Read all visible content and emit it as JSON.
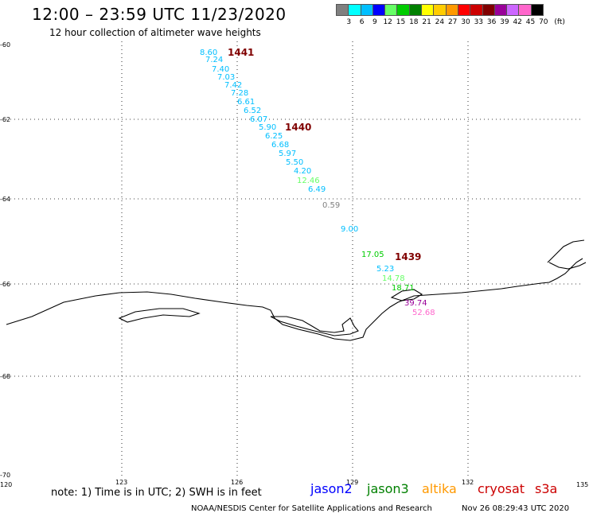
{
  "header": {
    "title": "12:00 – 23:59 UTC 11/23/2020",
    "subtitle": "12 hour collection of altimeter wave heights"
  },
  "scale": {
    "colors": [
      "#808080",
      "#00ffff",
      "#00bfff",
      "#0000ff",
      "#66ff66",
      "#00cc00",
      "#008000",
      "#ffff00",
      "#ffcc00",
      "#ff9900",
      "#ff0000",
      "#cc0000",
      "#800000",
      "#990099",
      "#cc66ff",
      "#ff66cc",
      "#000000"
    ],
    "labels": [
      "3",
      "6",
      "9",
      "12",
      "15",
      "18",
      "21",
      "24",
      "27",
      "30",
      "33",
      "36",
      "39",
      "42",
      "45",
      "70",
      "(ft)"
    ]
  },
  "axes": {
    "lat_labels": [
      "-60",
      "-62",
      "-64",
      "-66",
      "-68",
      "-70"
    ],
    "lon_labels": [
      "120",
      "123",
      "126",
      "129",
      "132",
      "135"
    ]
  },
  "passes": [
    "1441",
    "1440",
    "1439"
  ],
  "observations": [
    {
      "v": "8.60",
      "c": "#00bfff"
    },
    {
      "v": "7.24",
      "c": "#00bfff"
    },
    {
      "v": "7.40",
      "c": "#00bfff"
    },
    {
      "v": "7.03",
      "c": "#00bfff"
    },
    {
      "v": "7.42",
      "c": "#00bfff"
    },
    {
      "v": "7.28",
      "c": "#00bfff"
    },
    {
      "v": "6.61",
      "c": "#00bfff"
    },
    {
      "v": "6.52",
      "c": "#00bfff"
    },
    {
      "v": "6.07",
      "c": "#00bfff"
    },
    {
      "v": "5.90",
      "c": "#00bfff"
    },
    {
      "v": "6.25",
      "c": "#00bfff"
    },
    {
      "v": "6.68",
      "c": "#00bfff"
    },
    {
      "v": "5.97",
      "c": "#00bfff"
    },
    {
      "v": "5.50",
      "c": "#00bfff"
    },
    {
      "v": "4.20",
      "c": "#00bfff"
    },
    {
      "v": "12.46",
      "c": "#66ff66"
    },
    {
      "v": "6.49",
      "c": "#00bfff"
    },
    {
      "v": "0.59",
      "c": "#808080"
    },
    {
      "v": "9.00",
      "c": "#00bfff"
    },
    {
      "v": "17.05",
      "c": "#00cc00"
    },
    {
      "v": "5.23",
      "c": "#00bfff"
    },
    {
      "v": "14.78",
      "c": "#66ff66"
    },
    {
      "v": "18.71",
      "c": "#00cc00"
    },
    {
      "v": "39.74",
      "c": "#990099"
    },
    {
      "v": "52.68",
      "c": "#ff66cc"
    }
  ],
  "footer": {
    "note": "note: 1) Time is in UTC; 2) SWH is in feet",
    "satellites": [
      {
        "name": "jason2",
        "color": "#0000ff"
      },
      {
        "name": "jason3",
        "color": "#008000"
      },
      {
        "name": "altika",
        "color": "#ff9900"
      },
      {
        "name": "cryosat",
        "color": "#cc0000"
      },
      {
        "name": "s3a",
        "color": "#cc0000"
      }
    ],
    "credit": "NOAA/NESDIS Center for Satellite Applications and Research",
    "timestamp": "Nov 26 08:29:43 UTC 2020"
  }
}
